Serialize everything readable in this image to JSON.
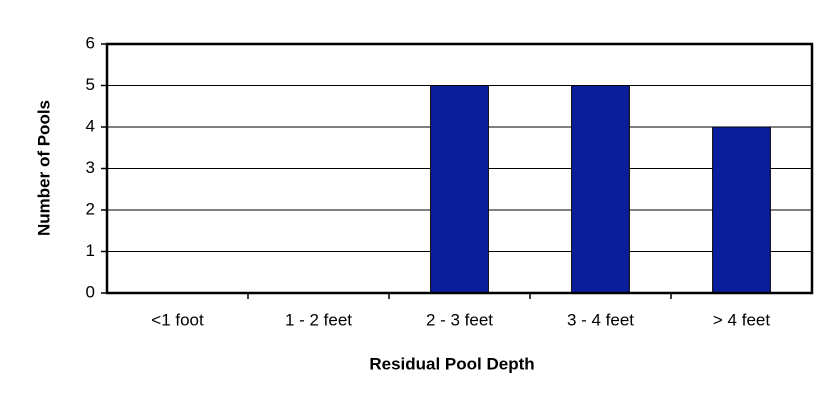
{
  "chart_data": {
    "type": "bar",
    "x_label": "Residual Pool Depth",
    "y_label": "Number of Pools",
    "categories": [
      "<1 foot",
      "1 - 2 feet",
      "2 - 3 feet",
      "3 - 4 feet",
      "> 4 feet"
    ],
    "values": [
      0,
      0,
      5,
      5,
      4
    ],
    "color": "#0a1e9c",
    "ylim": [
      0,
      6
    ],
    "yticks": [
      0,
      1,
      2,
      3,
      4,
      5,
      6
    ],
    "grid": true
  }
}
